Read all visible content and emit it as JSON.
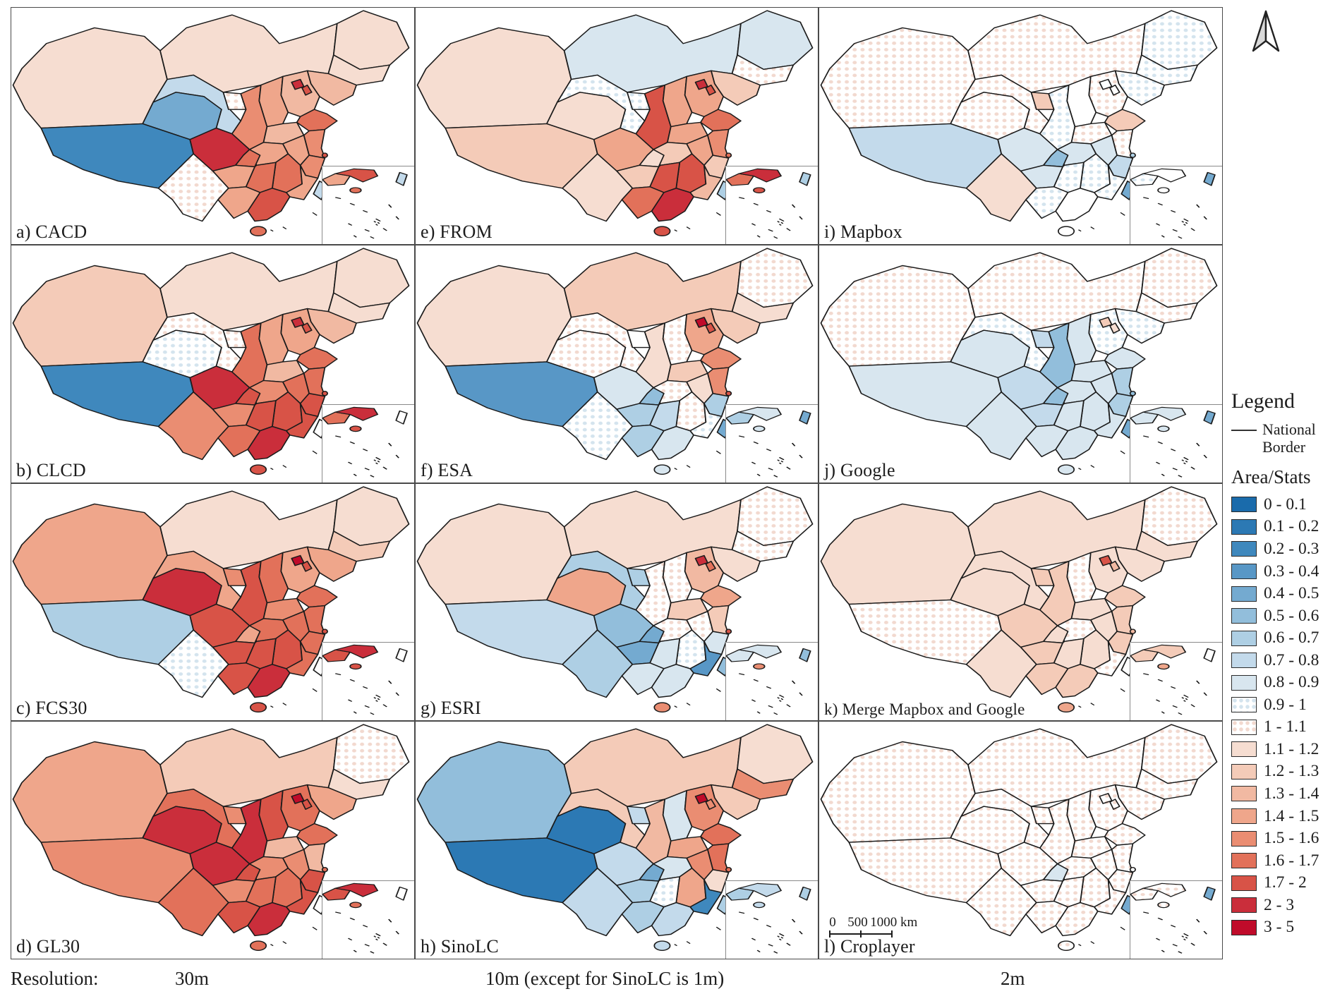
{
  "figure": {
    "panels": [
      {
        "id": "a",
        "label": "a) CACD",
        "regions": {
          "xinjiang": "1.1 - 1.2",
          "tibet": "0.2 - 0.3",
          "qinghai": "0.4 - 0.5",
          "gansu": "0.7 - 0.8",
          "ningxia": "1 - 1.1",
          "inner_mongolia": "1.1 - 1.2",
          "heilongjiang": "1.1 - 1.2",
          "jilin": "1.1 - 1.2",
          "liaoning": "1.3 - 1.4",
          "beijing": "2 - 3",
          "tianjin": "1.7 - 2",
          "hebei": "1.3 - 1.4",
          "shanxi": "1.4 - 1.5",
          "shaanxi": "1.5 - 1.6",
          "shandong": "1.6 - 1.7",
          "henan": "1.3 - 1.4",
          "jiangsu": "1.5 - 1.6",
          "shanghai": "1.7 - 2",
          "anhui": "1.4 - 1.5",
          "zhejiang": "1.5 - 1.6",
          "hubei": "1.4 - 1.5",
          "chongqing": "1.6 - 1.7",
          "sichuan": "2 - 3",
          "yunnan": "1 - 1.1",
          "guizhou": "1.4 - 1.5",
          "hunan": "1.6 - 1.7",
          "jiangxi": "1.6 - 1.7",
          "fujian": "1.4 - 1.5",
          "guangdong": "1.7 - 2",
          "guangxi": "1.4 - 1.5",
          "hainan": "1.6 - 1.7",
          "taiwan": "0.7 - 0.8"
        }
      },
      {
        "id": "b",
        "label": "b) CLCD",
        "regions": {
          "xinjiang": "1.2 - 1.3",
          "tibet": "0.2 - 0.3",
          "qinghai": "0.9 - 1",
          "gansu": "1 - 1.1",
          "ningxia": "1 - 1.1",
          "inner_mongolia": "1.1 - 1.2",
          "heilongjiang": "1.1 - 1.2",
          "jilin": "1.1 - 1.2",
          "liaoning": "1.3 - 1.4",
          "beijing": "2 - 3",
          "tianjin": "1.7 - 2",
          "hebei": "1.4 - 1.5",
          "shanxi": "1.4 - 1.5",
          "shaanxi": "1.6 - 1.7",
          "shandong": "1.6 - 1.7",
          "henan": "1.3 - 1.4",
          "jiangsu": "1.6 - 1.7",
          "shanghai": "1.7 - 2",
          "anhui": "1.6 - 1.7",
          "zhejiang": "1.7 - 2",
          "hubei": "1.5 - 1.6",
          "chongqing": "1.7 - 2",
          "sichuan": "2 - 3",
          "yunnan": "1.5 - 1.6",
          "guizhou": "1.5 - 1.6",
          "hunan": "1.7 - 2",
          "jiangxi": "1.7 - 2",
          "fujian": "1.7 - 2",
          "guangdong": "2 - 3",
          "guangxi": "1.6 - 1.7",
          "hainan": "1.7 - 2",
          "taiwan": ""
        }
      },
      {
        "id": "c",
        "label": "c) FCS30",
        "regions": {
          "xinjiang": "1.4 - 1.5",
          "tibet": "0.6 - 0.7",
          "qinghai": "2 - 3",
          "gansu": "1.4 - 1.5",
          "ningxia": "1.5 - 1.6",
          "inner_mongolia": "1.1 - 1.2",
          "heilongjiang": "1.1 - 1.2",
          "jilin": "1.2 - 1.3",
          "liaoning": "1.4 - 1.5",
          "beijing": "3 - 5",
          "tianjin": "1.7 - 2",
          "hebei": "1.4 - 1.5",
          "shanxi": "1.6 - 1.7",
          "shaanxi": "1.7 - 2",
          "shandong": "1.6 - 1.7",
          "henan": "1.5 - 1.6",
          "jiangsu": "1.6 - 1.7",
          "shanghai": "1.7 - 2",
          "anhui": "1.6 - 1.7",
          "zhejiang": "1.6 - 1.7",
          "hubei": "1.6 - 1.7",
          "chongqing": "1.4 - 1.5",
          "sichuan": "1.7 - 2",
          "yunnan": "0.9 - 1",
          "guizhou": "1.7 - 2",
          "hunan": "1.7 - 2",
          "jiangxi": "1.7 - 2",
          "fujian": "1.6 - 1.7",
          "guangdong": "2 - 3",
          "guangxi": "1.7 - 2",
          "hainan": "1.7 - 2",
          "taiwan": ""
        }
      },
      {
        "id": "d",
        "label": "d) GL30",
        "regions": {
          "xinjiang": "1.4 - 1.5",
          "tibet": "1.5 - 1.6",
          "qinghai": "2 - 3",
          "gansu": "1.6 - 1.7",
          "ningxia": "1.5 - 1.6",
          "inner_mongolia": "1.2 - 1.3",
          "heilongjiang": "1 - 1.1",
          "jilin": "1.1 - 1.2",
          "liaoning": "1.4 - 1.5",
          "beijing": "3 - 5",
          "tianjin": "1.7 - 2",
          "hebei": "1.6 - 1.7",
          "shanxi": "1.7 - 2",
          "shaanxi": "2 - 3",
          "shandong": "1.6 - 1.7",
          "henan": "1.3 - 1.4",
          "jiangsu": "1.3 - 1.4",
          "shanghai": "1.6 - 1.7",
          "anhui": "1.5 - 1.6",
          "zhejiang": "1.7 - 2",
          "hubei": "1.5 - 1.6",
          "chongqing": "1.7 - 2",
          "sichuan": "2 - 3",
          "yunnan": "1.6 - 1.7",
          "guizhou": "1.5 - 1.6",
          "hunan": "1.6 - 1.7",
          "jiangxi": "1.6 - 1.7",
          "fujian": "1.7 - 2",
          "guangdong": "2 - 3",
          "guangxi": "1.7 - 2",
          "hainan": "1.6 - 1.7",
          "taiwan": ""
        }
      },
      {
        "id": "e",
        "label": "e) FROM",
        "regions": {
          "xinjiang": "1.1 - 1.2",
          "tibet": "1.2 - 1.3",
          "qinghai": "1.1 - 1.2",
          "gansu": "0.9 - 1",
          "ningxia": "0.9 - 1",
          "inner_mongolia": "0.8 - 0.9",
          "heilongjiang": "0.8 - 0.9",
          "jilin": "1 - 1.1",
          "liaoning": "1.2 - 1.3",
          "beijing": "2 - 3",
          "tianjin": "1.7 - 2",
          "hebei": "1.4 - 1.5",
          "shanxi": "1.4 - 1.5",
          "shaanxi": "1.7 - 2",
          "shandong": "1.6 - 1.7",
          "henan": "1.4 - 1.5",
          "jiangsu": "1.5 - 1.6",
          "shanghai": "1.6 - 1.7",
          "anhui": "1.4 - 1.5",
          "zhejiang": "1.2 - 1.3",
          "hubei": "1.2 - 1.3",
          "chongqing": "1.1 - 1.2",
          "sichuan": "1.4 - 1.5",
          "yunnan": "1.1 - 1.2",
          "guizhou": "1.2 - 1.3",
          "hunan": "1.7 - 2",
          "jiangxi": "1.7 - 2",
          "fujian": "1.3 - 1.4",
          "guangdong": "2 - 3",
          "guangxi": "1.6 - 1.7",
          "hainan": "1.7 - 2",
          "taiwan": "0.6 - 0.7"
        }
      },
      {
        "id": "f",
        "label": "f) ESA",
        "regions": {
          "xinjiang": "1.1 - 1.2",
          "tibet": "0.3 - 0.4",
          "qinghai": "1 - 1.1",
          "gansu": "1 - 1.1",
          "ningxia": "",
          "inner_mongolia": "1.2 - 1.3",
          "heilongjiang": "1 - 1.1",
          "jilin": "1.1 - 1.2",
          "liaoning": "1.2 - 1.3",
          "beijing": "3 - 5",
          "tianjin": "1.7 - 2",
          "hebei": "1.4 - 1.5",
          "shanxi": "1 - 1.1",
          "shaanxi": "1.1 - 1.2",
          "shandong": "1.5 - 1.6",
          "henan": "1.2 - 1.3",
          "jiangsu": "1.5 - 1.6",
          "shanghai": "1.7 - 2",
          "anhui": "1.1 - 1.2",
          "zhejiang": "0.6 - 0.7",
          "hubei": "1 - 1.1",
          "chongqing": "0.5 - 0.6",
          "sichuan": "0.8 - 0.9",
          "yunnan": "0.9 - 1",
          "guizhou": "0.6 - 0.7",
          "hunan": "0.7 - 0.8",
          "jiangxi": "1 - 1.1",
          "fujian": "0.9 - 1",
          "guangdong": "0.8 - 0.9",
          "guangxi": "0.6 - 0.7",
          "hainan": "0.8 - 0.9",
          "taiwan": "0.4 - 0.5"
        }
      },
      {
        "id": "g",
        "label": "g) ESRI",
        "regions": {
          "xinjiang": "1.1 - 1.2",
          "tibet": "0.7 - 0.8",
          "qinghai": "1.4 - 1.5",
          "gansu": "0.6 - 0.7",
          "ningxia": "0.6 - 0.7",
          "inner_mongolia": "1.1 - 1.2",
          "heilongjiang": "1 - 1.1",
          "jilin": "1 - 1.1",
          "liaoning": "1.1 - 1.2",
          "beijing": "2 - 3",
          "tianjin": "1.6 - 1.7",
          "hebei": "1.3 - 1.4",
          "shanxi": "1 - 1.1",
          "shaanxi": "1 - 1.1",
          "shandong": "1.4 - 1.5",
          "henan": "1.2 - 1.3",
          "jiangsu": "1.2 - 1.3",
          "shanghai": "1.7 - 2",
          "anhui": "1 - 1.1",
          "zhejiang": "0.8 - 0.9",
          "hubei": "1 - 1.1",
          "chongqing": "0.4 - 0.5",
          "sichuan": "0.5 - 0.6",
          "yunnan": "0.6 - 0.7",
          "guizhou": "0.4 - 0.5",
          "hunan": "0.8 - 0.9",
          "jiangxi": "0.9 - 1",
          "fujian": "0.3 - 0.4",
          "guangdong": "0.8 - 0.9",
          "guangxi": "0.8 - 0.9",
          "hainan": "1.5 - 1.6",
          "taiwan": "0.5 - 0.6"
        }
      },
      {
        "id": "h",
        "label": "h) SinoLC",
        "regions": {
          "xinjiang": "0.5 - 0.6",
          "tibet": "0.1 - 0.2",
          "qinghai": "0.1 - 0.2",
          "gansu": "1.2 - 1.3",
          "ningxia": "0.7 - 0.8",
          "inner_mongolia": "1.2 - 1.3",
          "heilongjiang": "1.1 - 1.2",
          "jilin": "1.5 - 1.6",
          "liaoning": "1.2 - 1.3",
          "beijing": "3 - 5",
          "tianjin": "1.5 - 1.6",
          "hebei": "1.5 - 1.6",
          "shanxi": "0.8 - 0.9",
          "shaanxi": "1.3 - 1.4",
          "shandong": "1.6 - 1.7",
          "henan": "1.4 - 1.5",
          "jiangsu": "1.6 - 1.7",
          "shanghai": "1.6 - 1.7",
          "anhui": "1.5 - 1.6",
          "zhejiang": "1.1 - 1.2",
          "hubei": "0.8 - 0.9",
          "chongqing": "0.4 - 0.5",
          "sichuan": "0.7 - 0.8",
          "yunnan": "0.7 - 0.8",
          "guizhou": "0.6 - 0.7",
          "hunan": "0.9 - 1",
          "jiangxi": "1.4 - 1.5",
          "fujian": "0.2 - 0.3",
          "guangdong": "0.7 - 0.8",
          "guangxi": "0.6 - 0.7",
          "hainan": "0.7 - 0.8",
          "taiwan": "0.6 - 0.7"
        }
      },
      {
        "id": "i",
        "label": "i) Mapbox",
        "regions": {
          "xinjiang": "1 - 1.1",
          "tibet": "0.7 - 0.8",
          "qinghai": "1 - 1.1",
          "gansu": "1 - 1.1",
          "ningxia": "1.2 - 1.3",
          "inner_mongolia": "1 - 1.1",
          "heilongjiang": "0.9 - 1",
          "jilin": "0.9 - 1",
          "liaoning": "0.9 - 1",
          "beijing": "",
          "tianjin": "",
          "hebei": "1 - 1.1",
          "shanxi": "",
          "shaanxi": "0.9 - 1",
          "shandong": "1.2 - 1.3",
          "henan": "1 - 1.1",
          "jiangsu": "1 - 1.1",
          "shanghai": "0.6 - 0.7",
          "anhui": "0.8 - 0.9",
          "zhejiang": "0.7 - 0.8",
          "hubei": "0.8 - 0.9",
          "chongqing": "0.5 - 0.6",
          "sichuan": "0.8 - 0.9",
          "yunnan": "1.1 - 1.2",
          "guizhou": "0.8 - 0.9",
          "hunan": "0.9 - 1",
          "jiangxi": "0.9 - 1",
          "fujian": "0.9 - 1",
          "guangdong": "",
          "guangxi": "0.9 - 1",
          "hainan": "",
          "taiwan": "0.4 - 0.5"
        }
      },
      {
        "id": "j",
        "label": "j) Google",
        "regions": {
          "xinjiang": "1 - 1.1",
          "tibet": "0.8 - 0.9",
          "qinghai": "0.8 - 0.9",
          "gansu": "0.9 - 1",
          "ningxia": "0.7 - 0.8",
          "inner_mongolia": "1 - 1.1",
          "heilongjiang": "1 - 1.1",
          "jilin": "1 - 1.1",
          "liaoning": "0.9 - 1",
          "beijing": "1.2 - 1.3",
          "tianjin": "1.1 - 1.2",
          "hebei": "0.9 - 1",
          "shanxi": "0.8 - 0.9",
          "shaanxi": "0.5 - 0.6",
          "shandong": "0.8 - 0.9",
          "henan": "0.8 - 0.9",
          "jiangsu": "0.6 - 0.7",
          "shanghai": "0.5 - 0.6",
          "anhui": "0.8 - 0.9",
          "zhejiang": "0.6 - 0.7",
          "hubei": "0.8 - 0.9",
          "chongqing": "0.5 - 0.6",
          "sichuan": "0.7 - 0.8",
          "yunnan": "0.8 - 0.9",
          "guizhou": "0.7 - 0.8",
          "hunan": "0.8 - 0.9",
          "jiangxi": "0.8 - 0.9",
          "fujian": "0.8 - 0.9",
          "guangdong": "0.8 - 0.9",
          "guangxi": "0.8 - 0.9",
          "hainan": "0.8 - 0.9",
          "taiwan": "0.4 - 0.5"
        }
      },
      {
        "id": "k",
        "label": "k) Merge Mapbox and Google",
        "regions": {
          "xinjiang": "1.1 - 1.2",
          "tibet": "1 - 1.1",
          "qinghai": "1.1 - 1.2",
          "gansu": "1.1 - 1.2",
          "ningxia": "1.2 - 1.3",
          "inner_mongolia": "1.1 - 1.2",
          "heilongjiang": "1 - 1.1",
          "jilin": "1.1 - 1.2",
          "liaoning": "1.1 - 1.2",
          "beijing": "1.7 - 2",
          "tianjin": "1.3 - 1.4",
          "hebei": "1.1 - 1.2",
          "shanxi": "1 - 1.1",
          "shaanxi": "1.2 - 1.3",
          "shandong": "1.2 - 1.3",
          "henan": "1.1 - 1.2",
          "jiangsu": "1.2 - 1.3",
          "shanghai": "1.3 - 1.4",
          "anhui": "1.1 - 1.2",
          "zhejiang": "1.2 - 1.3",
          "hubei": "1 - 1.1",
          "chongqing": "1.1 - 1.2",
          "sichuan": "1.2 - 1.3",
          "yunnan": "1.1 - 1.2",
          "guizhou": "1.2 - 1.3",
          "hunan": "1.1 - 1.2",
          "jiangxi": "1.1 - 1.2",
          "fujian": "1 - 1.1",
          "guangdong": "1.2 - 1.3",
          "guangxi": "1.2 - 1.3",
          "hainan": "1.4 - 1.5",
          "taiwan": ""
        }
      },
      {
        "id": "l",
        "label": "l) Croplayer",
        "regions": {
          "xinjiang": "1 - 1.1",
          "tibet": "1 - 1.1",
          "qinghai": "1 - 1.1",
          "gansu": "1 - 1.1",
          "ningxia": "1 - 1.1",
          "inner_mongolia": "1 - 1.1",
          "heilongjiang": "1 - 1.1",
          "jilin": "1 - 1.1",
          "liaoning": "1 - 1.1",
          "beijing": "1 - 1.1",
          "tianjin": "1 - 1.1",
          "hebei": "1 - 1.1",
          "shanxi": "1 - 1.1",
          "shaanxi": "1 - 1.1",
          "shandong": "1 - 1.1",
          "henan": "1 - 1.1",
          "jiangsu": "1 - 1.1",
          "shanghai": "1 - 1.1",
          "anhui": "1 - 1.1",
          "zhejiang": "1 - 1.1",
          "hubei": "1 - 1.1",
          "chongqing": "0.8 - 0.9",
          "sichuan": "1 - 1.1",
          "yunnan": "1 - 1.1",
          "guizhou": "1 - 1.1",
          "hunan": "1 - 1.1",
          "jiangxi": "1 - 1.1",
          "fujian": "1 - 1.1",
          "guangdong": "1 - 1.1",
          "guangxi": "1 - 1.1",
          "hainan": "1 - 1.1",
          "taiwan": "0.4 - 0.5"
        }
      }
    ],
    "legend": {
      "title": "Legend",
      "national_border_label": "National Border",
      "stats_title": "Area/Stats",
      "classes": [
        {
          "label": "0 - 0.1",
          "color": "#1a6bab"
        },
        {
          "label": "0.1 - 0.2",
          "color": "#2c79b4"
        },
        {
          "label": "0.2 - 0.3",
          "color": "#3f88bd"
        },
        {
          "label": "0.3 - 0.4",
          "color": "#5897c6"
        },
        {
          "label": "0.4 - 0.5",
          "color": "#74aad0"
        },
        {
          "label": "0.5 - 0.6",
          "color": "#92bedb"
        },
        {
          "label": "0.6 - 0.7",
          "color": "#aecfe4"
        },
        {
          "label": "0.7 - 0.8",
          "color": "#c3daeb"
        },
        {
          "label": "0.8 - 0.9",
          "color": "#d8e6ef"
        },
        {
          "label": "0.9 - 1",
          "color": "#ffffff",
          "pattern": "dots-blue"
        },
        {
          "label": "1 - 1.1",
          "color": "#ffffff",
          "pattern": "dots-pink"
        },
        {
          "label": "1.1 - 1.2",
          "color": "#f6ddd1"
        },
        {
          "label": "1.2 - 1.3",
          "color": "#f4cbb8"
        },
        {
          "label": "1.3 - 1.4",
          "color": "#f1b9a2"
        },
        {
          "label": "1.4 - 1.5",
          "color": "#efa68b"
        },
        {
          "label": "1.5 - 1.6",
          "color": "#ea8d72"
        },
        {
          "label": "1.6 - 1.7",
          "color": "#e2715a"
        },
        {
          "label": "1.7 - 2",
          "color": "#d85347"
        },
        {
          "label": "2 - 3",
          "color": "#ca2e3b"
        },
        {
          "label": "3 - 5",
          "color": "#c00b2a"
        }
      ]
    },
    "scalebar": {
      "start": "0",
      "mid": "500",
      "end": "1000 km"
    },
    "footer": {
      "prefix": "Resolution:",
      "col1": "30m",
      "col2": "10m (except for SinoLC is 1m)",
      "col3": "2m"
    },
    "icons": {
      "north_arrow": "compass-north-arrow"
    }
  }
}
